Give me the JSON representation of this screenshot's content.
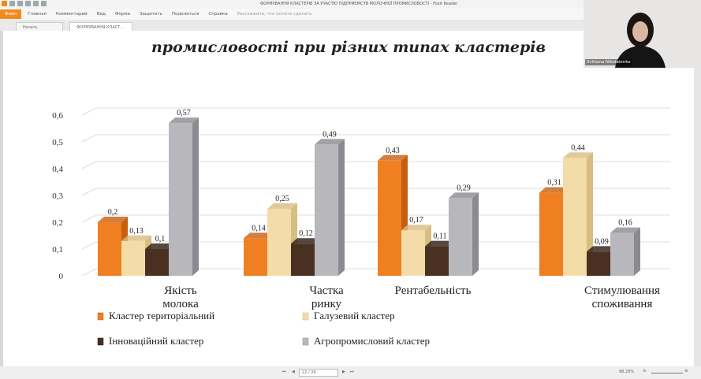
{
  "window": {
    "title": "ФОРМУВАННЯ КЛАСТЕРІВ ЗА УЧАСТЮ ПІДПРИЄМСТВ МОЛОЧНОЇ ПРОМИСЛОВОСТІ - Foxit Reader"
  },
  "menu": {
    "file": "Файл",
    "items": [
      "Главная",
      "Комментарий",
      "Вид",
      "Форма",
      "Защитить",
      "Поделиться",
      "Справка"
    ],
    "search_placeholder": "Расскажите, что хотите сделать"
  },
  "tabs": [
    {
      "label": "Начать"
    },
    {
      "label": "ФОРМУВАННЯ КЛАСТ..."
    }
  ],
  "webcam": {
    "name": "Svitlana Nikolaienko"
  },
  "status": {
    "page": "22 / 29",
    "zoom": "98,28%"
  },
  "chart_data": {
    "type": "bar",
    "title": "промисловості при різних типах кластерів",
    "categories": [
      "Якість молока",
      "Частка ринку",
      "Рентабельність",
      "Стимулювання споживання"
    ],
    "yticks": [
      "0",
      "0,1",
      "0,2",
      "0,3",
      "0,4",
      "0,5",
      "0,6"
    ],
    "ylim": [
      0,
      0.6
    ],
    "grid": true,
    "legend_placement": "bottom",
    "series": [
      {
        "name": "Кластер територіальний",
        "values": [
          0.2,
          0.14,
          0.43,
          0.31
        ],
        "labels": [
          "0,2",
          "0,14",
          "0,43",
          "0,31"
        ],
        "color": "#f07f22",
        "side": "#c75f10"
      },
      {
        "name": "Галузевий кластер",
        "values": [
          0.13,
          0.25,
          0.17,
          0.44
        ],
        "labels": [
          "0,13",
          "0,25",
          "0,17",
          "0,44"
        ],
        "color": "#f3dca8",
        "side": "#d8bd80"
      },
      {
        "name": "Інноваційний кластер",
        "values": [
          0.1,
          0.12,
          0.11,
          0.09
        ],
        "labels": [
          "0,1",
          "0,12",
          "0,11",
          "0,09"
        ],
        "color": "#4a3020",
        "side": "#2e1c10"
      },
      {
        "name": "Агропромисловий кластер",
        "values": [
          0.57,
          0.49,
          0.29,
          0.16
        ],
        "labels": [
          "0,57",
          "0,49",
          "0,29",
          "0,16"
        ],
        "color": "#b8b8bc",
        "side": "#8a8a90"
      }
    ]
  }
}
